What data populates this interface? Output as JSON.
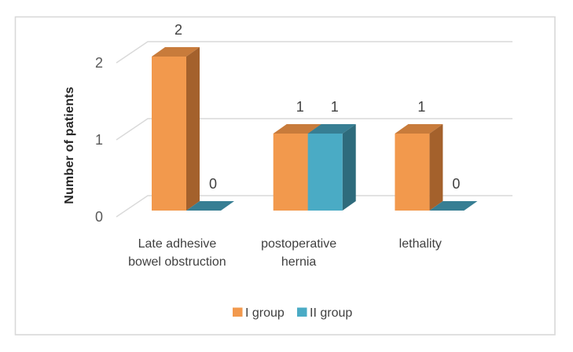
{
  "figure": {
    "background": "#FFFFFF",
    "border_color": "#D9D9D9"
  },
  "chart_data": {
    "type": "bar",
    "style": "3d-clustered-column",
    "title": "",
    "xlabel": "",
    "ylabel": "Number of patients",
    "categories": [
      "Late adhesive bowel obstruction",
      "postoperative hernia",
      "lethality"
    ],
    "category_label_lines": [
      [
        "Late adhesive",
        "bowel obstruction"
      ],
      [
        "postoperative",
        "hernia"
      ],
      [
        "lethality"
      ]
    ],
    "series": [
      {
        "name": "I group",
        "values": [
          2,
          1,
          1
        ],
        "color": "#F2994D",
        "top_color": "#C87B3B",
        "side_color": "#A4612C"
      },
      {
        "name": "II group",
        "values": [
          0,
          1,
          0
        ],
        "color": "#4AABC5",
        "top_color": "#377E93",
        "side_color": "#2E6B7C"
      }
    ],
    "data_labels": [
      [
        "2",
        "1",
        "1"
      ],
      [
        "0",
        "1",
        "0"
      ]
    ],
    "yticks": [
      "0",
      "1",
      "2"
    ],
    "ylim": [
      0,
      2
    ],
    "grid": true,
    "legend_position": "bottom",
    "gridline_color": "#D9D9D9",
    "tick_label_color": "#595959",
    "data_label_color": "#404040",
    "category_label_color": "#404040",
    "axis_title_color": "#262626",
    "legend_label_color": "#404040"
  }
}
